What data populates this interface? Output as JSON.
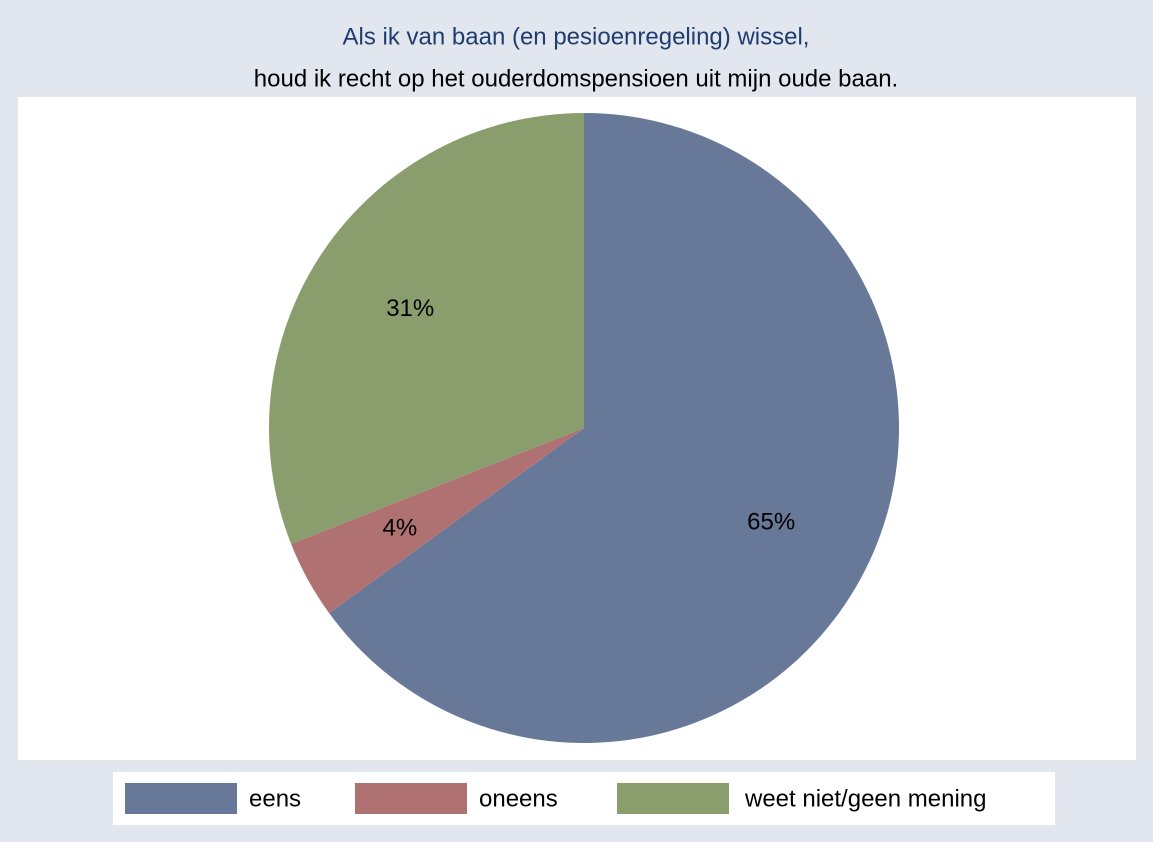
{
  "chart_data": {
    "type": "pie",
    "title": "Als ik van baan (en pesioenregeling) wissel,",
    "subtitle": "houd ik recht op het ouderdomspensioen uit mijn oude baan.",
    "categories": [
      "eens",
      "oneens",
      "weet niet/geen mening"
    ],
    "values": [
      65,
      4,
      31
    ],
    "value_labels": [
      "65%",
      "4%",
      "31%"
    ],
    "colors": [
      "#677899",
      "#b07173",
      "#899d6d"
    ],
    "legend": "bottom"
  }
}
